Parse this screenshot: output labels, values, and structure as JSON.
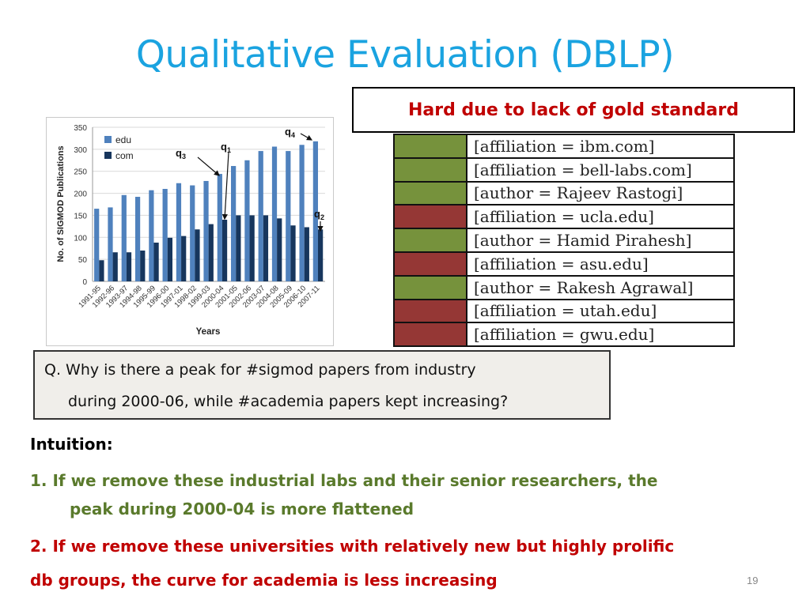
{
  "slide": {
    "title": "Qualitative Evaluation (DBLP)",
    "notice": "Hard due to lack of gold standard",
    "slide_number": "19"
  },
  "colors": {
    "title": "#1aa3e0",
    "edu": "#4f81bd",
    "com": "#17365d",
    "keep_green": "#76923c",
    "remove_red": "#953735",
    "point1": "#5a7a2c",
    "point2": "#c00000"
  },
  "filters": [
    {
      "text": "[affiliation = ibm.com]",
      "status": "green"
    },
    {
      "text": "[affiliation = bell-labs.com]",
      "status": "green"
    },
    {
      "text": "[author = Rajeev Rastogi]",
      "status": "green"
    },
    {
      "text": "[affiliation = ucla.edu]",
      "status": "red"
    },
    {
      "text": "[author = Hamid Pirahesh]",
      "status": "green"
    },
    {
      "text": "[affiliation = asu.edu]",
      "status": "red"
    },
    {
      "text": "[author = Rakesh Agrawal]",
      "status": "green"
    },
    {
      "text": "[affiliation = utah.edu]",
      "status": "red"
    },
    {
      "text": "[affiliation = gwu.edu]",
      "status": "red"
    }
  ],
  "question": {
    "line1": "Q. Why is there a peak for #sigmod papers from industry",
    "line2": "during 2000-06, while #academia papers kept increasing?"
  },
  "intuition": {
    "label": "Intuition:",
    "point1_line1": "1. If we remove these industrial labs and their senior researchers,  the",
    "point1_line2": "peak during 2000-04 is more flattened",
    "point2_line1": "2. If we remove these universities with relatively new but highly prolific",
    "point2_line2": "db groups,  the curve for academia is less increasing"
  },
  "chart_data": {
    "type": "bar",
    "xlabel": "Years",
    "ylabel": "No. of SIGMOD Publications",
    "ylim": [
      0,
      350
    ],
    "yticks": [
      "0",
      "50",
      "100",
      "150",
      "200",
      "250",
      "300",
      "350"
    ],
    "legend_position": "top-left",
    "categories": [
      "1991-95",
      "1992-96",
      "1993-97",
      "1994-98",
      "1995-99",
      "1996-00",
      "1997-01",
      "1998-02",
      "1999-03",
      "2000-04",
      "2001-05",
      "2002-06",
      "2003-07",
      "2004-08",
      "2005-09",
      "2006-10",
      "2007-11"
    ],
    "series": [
      {
        "name": "edu",
        "values": [
          165,
          168,
          196,
          192,
          207,
          210,
          223,
          218,
          228,
          244,
          262,
          275,
          296,
          306,
          296,
          310,
          318
        ]
      },
      {
        "name": "com",
        "values": [
          48,
          66,
          66,
          70,
          88,
          99,
          103,
          118,
          130,
          140,
          150,
          150,
          150,
          143,
          127,
          123,
          118
        ]
      }
    ],
    "annotations": [
      {
        "label": "q",
        "sub": "1"
      },
      {
        "label": "q",
        "sub": "2"
      },
      {
        "label": "q",
        "sub": "3"
      },
      {
        "label": "q",
        "sub": "4"
      }
    ]
  }
}
